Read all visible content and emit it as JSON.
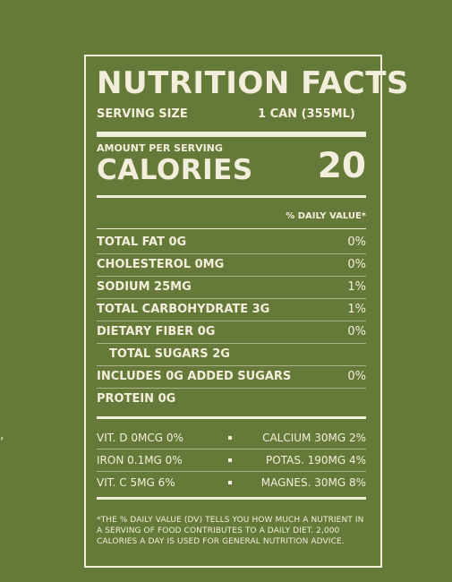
{
  "edge_mark": ",",
  "label": {
    "title": "NUTRITION FACTS",
    "serving_size_label": "SERVING SIZE",
    "serving_size_value": "1 CAN (355ML)",
    "amount_per_serving": "AMOUNT PER SERVING",
    "calories_label": "CALORIES",
    "calories_value": "20",
    "daily_value_header": "% DAILY VALUE*",
    "nutrients": [
      {
        "label": "TOTAL FAT 0G",
        "pct": "0%",
        "indent": false
      },
      {
        "label": "CHOLESTEROL 0MG",
        "pct": "0%",
        "indent": false
      },
      {
        "label": "SODIUM 25MG",
        "pct": "1%",
        "indent": false
      },
      {
        "label": "TOTAL CARBOHYDRATE 3G",
        "pct": "1%",
        "indent": false
      },
      {
        "label": "DIETARY FIBER 0G",
        "pct": "0%",
        "indent": false
      },
      {
        "label": "TOTAL SUGARS 2G",
        "pct": "",
        "indent": true
      },
      {
        "label": "INCLUDES 0G ADDED SUGARS",
        "pct": "0%",
        "indent": false
      },
      {
        "label": "PROTEIN 0G",
        "pct": "",
        "indent": false
      }
    ],
    "vitamins": [
      {
        "left": "VIT. D 0MCG 0%",
        "right": "CALCIUM 30MG 2%"
      },
      {
        "left": "IRON 0.1MG 0%",
        "right": "POTAS. 190MG 4%"
      },
      {
        "left": "VIT. C 5MG 6%",
        "right": "MAGNES. 30MG 8%"
      }
    ],
    "footnote": "*THE % DAILY VALUE (DV) TELLS YOU HOW MUCH A NUTRIENT IN A SERVING OF FOOD CONTRIBUTES TO A DAILY DIET. 2,000 CALORIES A DAY IS USED FOR GENERAL NUTRITION ADVICE."
  },
  "colors": {
    "background": "#657a38",
    "ink": "#f3eedc"
  }
}
